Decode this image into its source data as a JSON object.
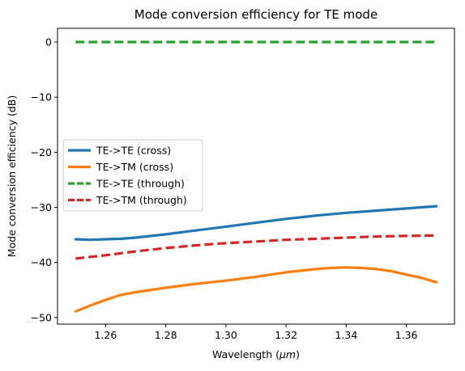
{
  "chart_data": {
    "type": "line",
    "title": "Mode conversion efficiency for TE mode",
    "xlabel_prefix": "Wavelength (",
    "xlabel_unit": "μm",
    "xlabel_suffix": ")",
    "ylabel": "Mode conversion efficiency (dB)",
    "xlim": [
      1.244,
      1.376
    ],
    "ylim": [
      -51.2,
      2.5
    ],
    "xticks": [
      1.26,
      1.28,
      1.3,
      1.32,
      1.34,
      1.36
    ],
    "xtick_labels": [
      "1.26",
      "1.28",
      "1.30",
      "1.32",
      "1.34",
      "1.36"
    ],
    "yticks": [
      0,
      -10,
      -20,
      -30,
      -40,
      -50
    ],
    "ytick_labels": [
      "0",
      "−10",
      "−20",
      "−30",
      "−40",
      "−50"
    ],
    "grid": false,
    "legend_position": "center-left",
    "series": [
      {
        "name": "TE->TE (cross)",
        "color": "#1f77b4",
        "style": "solid",
        "x": [
          1.25,
          1.255,
          1.26,
          1.265,
          1.27,
          1.28,
          1.29,
          1.3,
          1.31,
          1.32,
          1.33,
          1.34,
          1.35,
          1.36,
          1.37
        ],
        "y": [
          -35.8,
          -35.9,
          -35.8,
          -35.7,
          -35.5,
          -34.9,
          -34.2,
          -33.5,
          -32.8,
          -32.1,
          -31.5,
          -31.0,
          -30.6,
          -30.2,
          -29.8
        ]
      },
      {
        "name": "TE->TM (cross)",
        "color": "#ff7f0e",
        "style": "solid",
        "x": [
          1.25,
          1.255,
          1.26,
          1.265,
          1.27,
          1.28,
          1.29,
          1.3,
          1.31,
          1.32,
          1.33,
          1.335,
          1.34,
          1.345,
          1.35,
          1.355,
          1.36,
          1.365,
          1.37
        ],
        "y": [
          -48.9,
          -47.8,
          -46.8,
          -45.9,
          -45.4,
          -44.6,
          -43.9,
          -43.3,
          -42.6,
          -41.8,
          -41.2,
          -41.0,
          -40.9,
          -41.0,
          -41.2,
          -41.6,
          -42.2,
          -42.8,
          -43.6
        ]
      },
      {
        "name": "TE->TE (through)",
        "color": "#2ca02c",
        "style": "dashed",
        "x": [
          1.25,
          1.37
        ],
        "y": [
          0.0,
          0.0
        ]
      },
      {
        "name": "TE->TM (through)",
        "color": "#d62728",
        "style": "dashed",
        "x": [
          1.25,
          1.26,
          1.27,
          1.28,
          1.29,
          1.3,
          1.31,
          1.32,
          1.33,
          1.34,
          1.35,
          1.36,
          1.37
        ],
        "y": [
          -39.3,
          -38.7,
          -38.0,
          -37.4,
          -36.9,
          -36.5,
          -36.2,
          -35.9,
          -35.7,
          -35.5,
          -35.3,
          -35.2,
          -35.1
        ]
      }
    ]
  }
}
